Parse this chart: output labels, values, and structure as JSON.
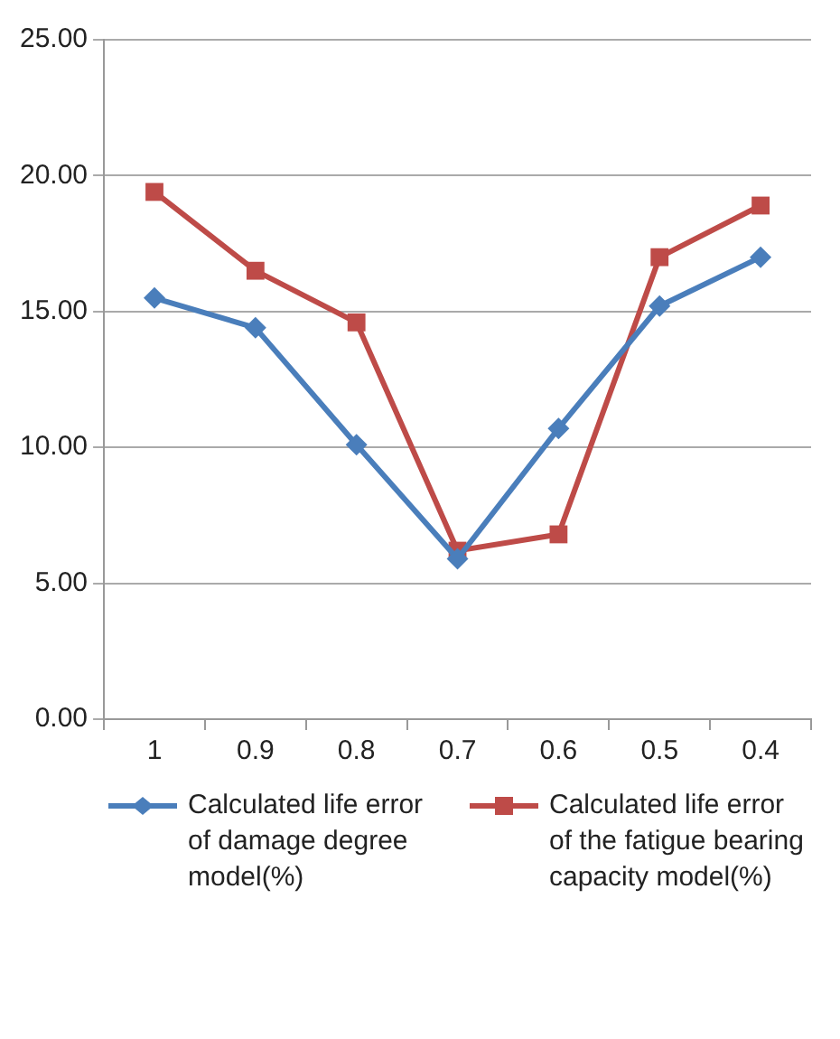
{
  "chart_data": {
    "type": "line",
    "categories": [
      "1",
      "0.9",
      "0.8",
      "0.7",
      "0.6",
      "0.5",
      "0.4"
    ],
    "series": [
      {
        "name": "Calculated life error of damage degree model(%)",
        "color": "#4a7ebb",
        "values": [
          15.5,
          14.4,
          10.1,
          5.9,
          10.7,
          15.2,
          17.0
        ],
        "marker": "diamond"
      },
      {
        "name": "Calculated life error of the fatigue bearing capacity model(%)",
        "color": "#be4b48",
        "values": [
          19.4,
          16.5,
          14.6,
          6.2,
          6.8,
          17.0,
          18.9
        ],
        "marker": "square"
      }
    ],
    "ylim": [
      0,
      25
    ],
    "yticks": [
      {
        "value": 0,
        "label": "0.00"
      },
      {
        "value": 5,
        "label": "5.00"
      },
      {
        "value": 10,
        "label": "10.00"
      },
      {
        "value": 15,
        "label": "15.00"
      },
      {
        "value": 20,
        "label": "20.00"
      },
      {
        "value": 25,
        "label": "25.00"
      }
    ],
    "grid": "y",
    "legend": "bottom",
    "line_style": "solid"
  }
}
